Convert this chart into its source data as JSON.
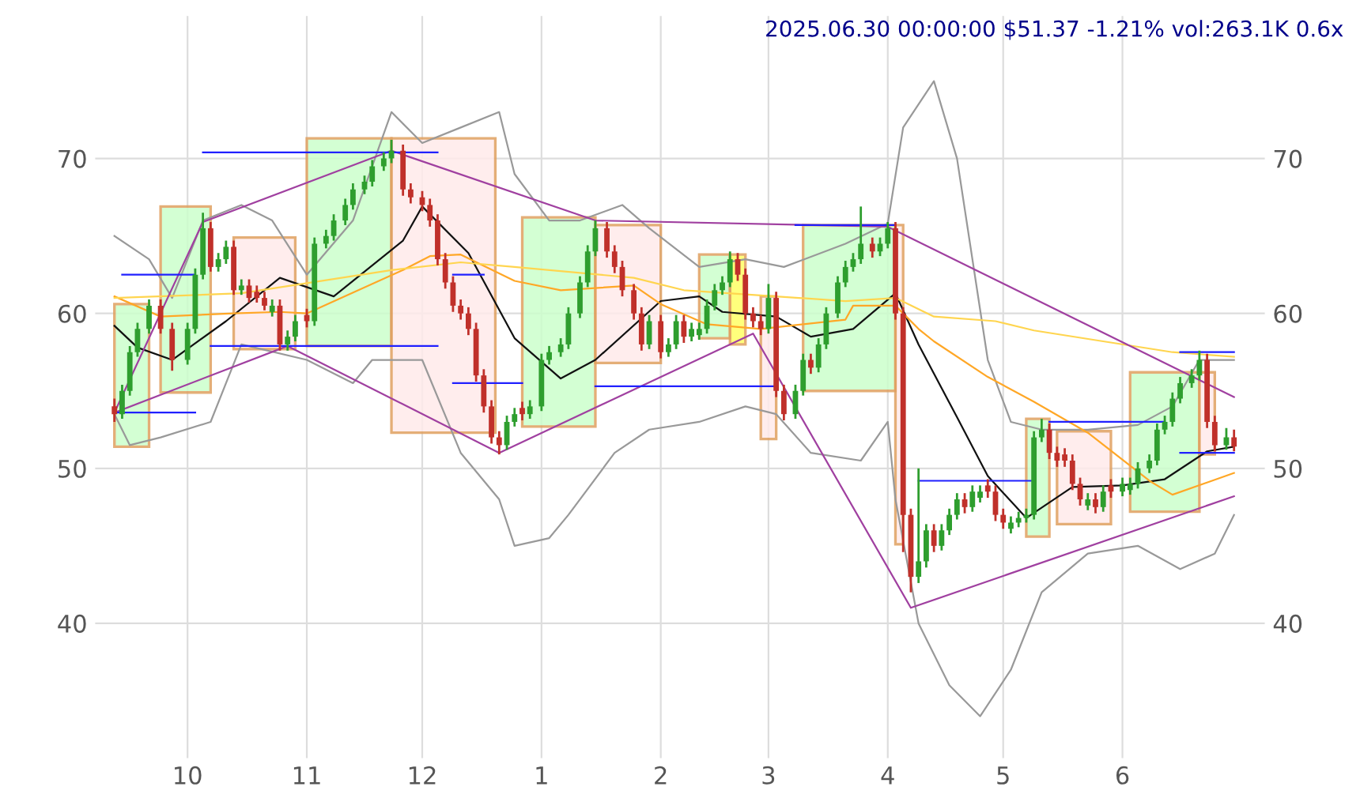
{
  "chart_data": {
    "type": "candlestick",
    "title": "2025.06.30 00:00:00 $51.37 -1.21% vol:263.1K 0.6x",
    "x": [
      "2024-09-12",
      "2024-09-14",
      "2024-09-16",
      "2024-09-18",
      "2024-09-21",
      "2024-09-24",
      "2024-09-27",
      "2024-10-01",
      "2024-10-03",
      "2024-10-05",
      "2024-10-07",
      "2024-10-09",
      "2024-10-11",
      "2024-10-13",
      "2024-10-15",
      "2024-10-17",
      "2024-10-19",
      "2024-10-21",
      "2024-10-23",
      "2024-10-25",
      "2024-10-27",
      "2024-10-29",
      "2024-11-01",
      "2024-11-03",
      "2024-11-06",
      "2024-11-08",
      "2024-11-11",
      "2024-11-13",
      "2024-11-16",
      "2024-11-18",
      "2024-11-21",
      "2024-11-23",
      "2024-11-26",
      "2024-11-28",
      "2024-12-01",
      "2024-12-03",
      "2024-12-05",
      "2024-12-07",
      "2024-12-09",
      "2024-12-11",
      "2024-12-13",
      "2024-12-15",
      "2024-12-17",
      "2024-12-19",
      "2024-12-21",
      "2024-12-23",
      "2024-12-25",
      "2024-12-27",
      "2024-12-29",
      "2025-01-01",
      "2025-01-03",
      "2025-01-06",
      "2025-01-08",
      "2025-01-11",
      "2025-01-13",
      "2025-01-15",
      "2025-01-18",
      "2025-01-20",
      "2025-01-22",
      "2025-01-25",
      "2025-01-27",
      "2025-01-29",
      "2025-02-01",
      "2025-02-03",
      "2025-02-05",
      "2025-02-07",
      "2025-02-09",
      "2025-02-11",
      "2025-02-13",
      "2025-02-15",
      "2025-02-17",
      "2025-02-19",
      "2025-02-21",
      "2025-02-23",
      "2025-02-25",
      "2025-02-27",
      "2025-03-01",
      "2025-03-03",
      "2025-03-05",
      "2025-03-08",
      "2025-03-10",
      "2025-03-12",
      "2025-03-14",
      "2025-03-16",
      "2025-03-19",
      "2025-03-21",
      "2025-03-23",
      "2025-03-25",
      "2025-03-28",
      "2025-03-30",
      "2025-04-01",
      "2025-04-03",
      "2025-04-05",
      "2025-04-07",
      "2025-04-09",
      "2025-04-11",
      "2025-04-13",
      "2025-04-15",
      "2025-04-17",
      "2025-04-19",
      "2025-04-21",
      "2025-04-23",
      "2025-04-25",
      "2025-04-27",
      "2025-04-29",
      "2025-05-01",
      "2025-05-03",
      "2025-05-05",
      "2025-05-07",
      "2025-05-09",
      "2025-05-11",
      "2025-05-13",
      "2025-05-15",
      "2025-05-17",
      "2025-05-19",
      "2025-05-21",
      "2025-05-23",
      "2025-05-25",
      "2025-05-27",
      "2025-05-29",
      "2025-06-01",
      "2025-06-03",
      "2025-06-05",
      "2025-06-08",
      "2025-06-10",
      "2025-06-12",
      "2025-06-14",
      "2025-06-16",
      "2025-06-19",
      "2025-06-21",
      "2025-06-23",
      "2025-06-25",
      "2025-06-28",
      "2025-06-30"
    ],
    "ohlc": [
      [
        54,
        54.5,
        53,
        53.5
      ],
      [
        53.5,
        55.4,
        53.2,
        55
      ],
      [
        55,
        57.9,
        54.7,
        57.5
      ],
      [
        57.5,
        59.4,
        57.2,
        59
      ],
      [
        59,
        60.9,
        58.7,
        60.5
      ],
      [
        60.5,
        60.9,
        58.7,
        59
      ],
      [
        59,
        59.4,
        56.3,
        57
      ],
      [
        57,
        59.4,
        56.7,
        59
      ],
      [
        59,
        62.9,
        58.7,
        62.5
      ],
      [
        62.5,
        66.5,
        62.2,
        65.5
      ],
      [
        65.5,
        65.9,
        62.7,
        63
      ],
      [
        63,
        63.9,
        62.7,
        63.5
      ],
      [
        63.5,
        64.7,
        63.2,
        64.3
      ],
      [
        64.3,
        64.7,
        61.2,
        61.5
      ],
      [
        61.5,
        62.2,
        61.2,
        61.8
      ],
      [
        61.8,
        62.2,
        60.7,
        61
      ],
      [
        61.4,
        61.8,
        60.7,
        61
      ],
      [
        61,
        61.4,
        60.2,
        60.5
      ],
      [
        60.1,
        60.9,
        59.8,
        60.5
      ],
      [
        60.5,
        60.9,
        57.6,
        58
      ],
      [
        58,
        58.9,
        57.6,
        58.5
      ],
      [
        58.5,
        59.9,
        58.2,
        59.5
      ],
      [
        59.9,
        60.3,
        59.1,
        59.5
      ],
      [
        59.5,
        64.9,
        59.2,
        64.5
      ],
      [
        64.5,
        65.4,
        64.2,
        65
      ],
      [
        65,
        66.4,
        64.7,
        66
      ],
      [
        66,
        67.4,
        65.7,
        67
      ],
      [
        67,
        68.4,
        66.7,
        68
      ],
      [
        68,
        68.9,
        67.7,
        68.5
      ],
      [
        68.5,
        69.9,
        68.2,
        69.5
      ],
      [
        69.5,
        70.4,
        69.2,
        70
      ],
      [
        70,
        71.2,
        69.7,
        70.5
      ],
      [
        70.5,
        70.9,
        67.6,
        68
      ],
      [
        68,
        68.4,
        67.1,
        67.5
      ],
      [
        67.5,
        67.9,
        66.6,
        67
      ],
      [
        67,
        67.4,
        65.6,
        66
      ],
      [
        66,
        66.4,
        63.1,
        63.5
      ],
      [
        63.5,
        63.9,
        61.6,
        62
      ],
      [
        62,
        62.4,
        60.1,
        60.5
      ],
      [
        60.5,
        60.9,
        59.6,
        60
      ],
      [
        60,
        60.4,
        58.6,
        59
      ],
      [
        59,
        59.4,
        55.6,
        56
      ],
      [
        56,
        56.4,
        53.6,
        54
      ],
      [
        54,
        54.4,
        51.6,
        52
      ],
      [
        52,
        52.4,
        50.9,
        51.5
      ],
      [
        51.5,
        53.4,
        51.2,
        53
      ],
      [
        53,
        53.9,
        52.7,
        53.5
      ],
      [
        53.9,
        54.3,
        53.1,
        53.5
      ],
      [
        53.5,
        54.4,
        53.2,
        54
      ],
      [
        54,
        57.4,
        53.7,
        57
      ],
      [
        57,
        57.9,
        56.7,
        57.5
      ],
      [
        57.5,
        58.4,
        57.2,
        58
      ],
      [
        58,
        60.4,
        57.7,
        60
      ],
      [
        60,
        62.4,
        59.7,
        62
      ],
      [
        62,
        64.4,
        61.7,
        64
      ],
      [
        64,
        66,
        63.7,
        65.5
      ],
      [
        65.5,
        65.9,
        63.6,
        64
      ],
      [
        64,
        64.4,
        62.6,
        63
      ],
      [
        63,
        63.4,
        61.1,
        61.5
      ],
      [
        61.5,
        61.9,
        59.6,
        60
      ],
      [
        60,
        60.4,
        57.6,
        58
      ],
      [
        58,
        59.9,
        57.7,
        59.5
      ],
      [
        59.5,
        59.9,
        57.1,
        57.5
      ],
      [
        57.5,
        58.4,
        57.2,
        58
      ],
      [
        58,
        59.9,
        57.7,
        59.5
      ],
      [
        59.5,
        59.9,
        58.1,
        58.5
      ],
      [
        58.5,
        59.4,
        58.2,
        59
      ],
      [
        58.6,
        59.4,
        58.3,
        59
      ],
      [
        59,
        60.9,
        58.7,
        60.5
      ],
      [
        60.5,
        61.9,
        60.2,
        61.5
      ],
      [
        61.5,
        62.4,
        61.2,
        62
      ],
      [
        62,
        64,
        61.7,
        63.5
      ],
      [
        63.5,
        63.9,
        62.1,
        62.5
      ],
      [
        62.5,
        62.9,
        59.6,
        60
      ],
      [
        60,
        60.4,
        59.1,
        59.5
      ],
      [
        59.5,
        59.9,
        58.6,
        59
      ],
      [
        59,
        61.9,
        58.7,
        61
      ],
      [
        61,
        61.4,
        54.6,
        55
      ],
      [
        55,
        55.4,
        53.1,
        53.5
      ],
      [
        53.5,
        55.4,
        53.2,
        55
      ],
      [
        55,
        57.4,
        54.7,
        57
      ],
      [
        57,
        57.4,
        56.1,
        56.5
      ],
      [
        56.5,
        58.4,
        56.2,
        58
      ],
      [
        58,
        60.4,
        57.7,
        60
      ],
      [
        60,
        62.4,
        59.7,
        62
      ],
      [
        62,
        63.4,
        61.7,
        63
      ],
      [
        63,
        63.9,
        62.7,
        63.5
      ],
      [
        63.5,
        66.9,
        63.2,
        64.5
      ],
      [
        64.5,
        64.9,
        63.6,
        64
      ],
      [
        64,
        64.9,
        63.7,
        64.5
      ],
      [
        64.5,
        65.9,
        64.2,
        65.5
      ],
      [
        65.5,
        65.9,
        59.6,
        60
      ],
      [
        60,
        60.4,
        44.6,
        47
      ],
      [
        47,
        47.4,
        42,
        43
      ],
      [
        43,
        50,
        42.6,
        44
      ],
      [
        44,
        46.4,
        43.6,
        46
      ],
      [
        46,
        46.4,
        44.6,
        45
      ],
      [
        45,
        46.4,
        44.7,
        46
      ],
      [
        46,
        47.4,
        45.7,
        47
      ],
      [
        47,
        48.4,
        46.7,
        48
      ],
      [
        48,
        48.4,
        47.1,
        47.5
      ],
      [
        47.5,
        48.9,
        47.2,
        48.5
      ],
      [
        48.1,
        48.9,
        47.8,
        48.5
      ],
      [
        48.9,
        49.3,
        48.1,
        48.5
      ],
      [
        48.5,
        48.9,
        46.6,
        47
      ],
      [
        47,
        47.4,
        46.1,
        46.5
      ],
      [
        46.1,
        46.9,
        45.8,
        46.5
      ],
      [
        46.5,
        47.2,
        46.2,
        46.8
      ],
      [
        46.8,
        47.4,
        46.5,
        47
      ],
      [
        47,
        52.4,
        46.7,
        52
      ],
      [
        52,
        53.2,
        51.7,
        52.5
      ],
      [
        52.5,
        52.9,
        50.6,
        51
      ],
      [
        51,
        51.4,
        50.1,
        50.5
      ],
      [
        50.9,
        51.3,
        50.1,
        50.5
      ],
      [
        50.5,
        50.9,
        48.6,
        49
      ],
      [
        49,
        49.4,
        47.6,
        48
      ],
      [
        47.6,
        48.4,
        47.3,
        48
      ],
      [
        48,
        48.4,
        47.1,
        47.5
      ],
      [
        47.5,
        48.9,
        47.2,
        48.5
      ],
      [
        48.9,
        49.3,
        48.1,
        48.5
      ],
      [
        48.5,
        49.4,
        48.2,
        49
      ],
      [
        48.6,
        49.4,
        48.3,
        49
      ],
      [
        49,
        50.4,
        48.7,
        50
      ],
      [
        50,
        50.9,
        49.7,
        50.5
      ],
      [
        50.5,
        52.9,
        50.2,
        52.5
      ],
      [
        52.5,
        53.4,
        52.2,
        53
      ],
      [
        53,
        54.9,
        52.7,
        54.5
      ],
      [
        54.5,
        55.9,
        54.2,
        55.5
      ],
      [
        55.5,
        56.4,
        55.2,
        56
      ],
      [
        56,
        57.6,
        55.7,
        57
      ],
      [
        57,
        57.4,
        52.6,
        53
      ],
      [
        53,
        53.4,
        51.1,
        51.5
      ],
      [
        51.5,
        52.6,
        51.2,
        52
      ],
      [
        52,
        52.5,
        51.1,
        51.4
      ]
    ],
    "colors": [
      "#c0302a",
      "#2e9e2e",
      "#2e9e2e",
      "#2e9e2e",
      "#2e9e2e",
      "#c0302a",
      "#c0302a",
      "#2e9e2e",
      "#2e9e2e",
      "#2e9e2e",
      "#c0302a",
      "#2e9e2e",
      "#2e9e2e",
      "#c0302a",
      "#2e9e2e",
      "#c0302a",
      "#c0302a",
      "#c0302a",
      "#2e9e2e",
      "#c0302a",
      "#2e9e2e",
      "#2e9e2e",
      "#c0302a",
      "#2e9e2e",
      "#2e9e2e",
      "#2e9e2e",
      "#2e9e2e",
      "#2e9e2e",
      "#2e9e2e",
      "#2e9e2e",
      "#2e9e2e",
      "#2e9e2e",
      "#c0302a",
      "#c0302a",
      "#c0302a",
      "#c0302a",
      "#c0302a",
      "#c0302a",
      "#c0302a",
      "#c0302a",
      "#c0302a",
      "#c0302a",
      "#c0302a",
      "#c0302a",
      "#c0302a",
      "#2e9e2e",
      "#2e9e2e",
      "#c0302a",
      "#2e9e2e",
      "#2e9e2e",
      "#2e9e2e",
      "#2e9e2e",
      "#2e9e2e",
      "#2e9e2e",
      "#2e9e2e",
      "#2e9e2e",
      "#c0302a",
      "#c0302a",
      "#c0302a",
      "#c0302a",
      "#c0302a",
      "#2e9e2e",
      "#c0302a",
      "#2e9e2e",
      "#2e9e2e",
      "#c0302a",
      "#2e9e2e",
      "#2e9e2e",
      "#2e9e2e",
      "#2e9e2e",
      "#2e9e2e",
      "#2e9e2e",
      "#c0302a",
      "#c0302a",
      "#c0302a",
      "#c0302a",
      "#2e9e2e",
      "#c0302a",
      "#c0302a",
      "#2e9e2e",
      "#2e9e2e",
      "#c0302a",
      "#2e9e2e",
      "#2e9e2e",
      "#2e9e2e",
      "#2e9e2e",
      "#2e9e2e",
      "#2e9e2e",
      "#c0302a",
      "#2e9e2e",
      "#2e9e2e",
      "#c0302a",
      "#c0302a",
      "#c0302a",
      "#2e9e2e",
      "#2e9e2e",
      "#c0302a",
      "#2e9e2e",
      "#2e9e2e",
      "#2e9e2e",
      "#c0302a",
      "#2e9e2e",
      "#2e9e2e",
      "#c0302a",
      "#c0302a",
      "#c0302a",
      "#2e9e2e",
      "#2e9e2e",
      "#2e9e2e",
      "#2e9e2e",
      "#2e9e2e",
      "#c0302a",
      "#c0302a",
      "#c0302a",
      "#c0302a",
      "#c0302a",
      "#2e9e2e",
      "#c0302a",
      "#2e9e2e",
      "#c0302a",
      "#2e9e2e",
      "#2e9e2e",
      "#2e9e2e",
      "#2e9e2e",
      "#2e9e2e",
      "#2e9e2e",
      "#2e9e2e",
      "#2e9e2e",
      "#2e9e2e",
      "#2e9e2e",
      "#c0302a",
      "#c0302a",
      "#2e9e2e",
      "#c0302a"
    ],
    "series": [
      {
        "type": "area",
        "color": "#ccffcc",
        "x": [
          "2024-09-12",
          "2024-09-12",
          "2024-09-21",
          "2024-09-21"
        ],
        "values": [
          51.4,
          60.6,
          60.6,
          51.4
        ]
      },
      {
        "type": "area",
        "color": "#ccffcc",
        "x": [
          "2024-09-24",
          "2024-09-24",
          "2024-10-07",
          "2024-10-07"
        ],
        "values": [
          54.9,
          66.9,
          66.9,
          54.9
        ]
      },
      {
        "type": "area",
        "color": "#ffeaea",
        "x": [
          "2024-10-13",
          "2024-10-13",
          "2024-10-29",
          "2024-10-29"
        ],
        "values": [
          57.7,
          64.9,
          64.9,
          57.7
        ]
      },
      {
        "type": "area",
        "color": "#ccffcc",
        "x": [
          "2024-11-01",
          "2024-11-01",
          "2024-11-23",
          "2024-11-23"
        ],
        "values": [
          57.9,
          71.3,
          71.3,
          57.9
        ]
      },
      {
        "type": "area",
        "color": "#ffeaea",
        "x": [
          "2024-11-23",
          "2024-11-23",
          "2024-12-20",
          "2024-12-20"
        ],
        "values": [
          52.3,
          71.3,
          71.3,
          52.3
        ]
      },
      {
        "type": "area",
        "color": "#ccffcc",
        "x": [
          "2024-12-27",
          "2024-12-27",
          "2025-01-15",
          "2025-01-15"
        ],
        "values": [
          52.7,
          66.2,
          66.2,
          52.7
        ]
      },
      {
        "type": "area",
        "color": "#ffeaea",
        "x": [
          "2025-01-15",
          "2025-01-15",
          "2025-02-01",
          "2025-02-01"
        ],
        "values": [
          56.8,
          65.7,
          65.7,
          56.8
        ]
      },
      {
        "type": "area",
        "color": "#ccffcc",
        "x": [
          "2025-02-11",
          "2025-02-11",
          "2025-02-19",
          "2025-02-19"
        ],
        "values": [
          58.4,
          63.8,
          63.8,
          58.4
        ]
      },
      {
        "type": "area",
        "color": "#ffff66",
        "x": [
          "2025-02-19",
          "2025-02-19",
          "2025-02-23",
          "2025-02-23"
        ],
        "values": [
          58,
          63.8,
          63.8,
          58
        ]
      },
      {
        "type": "area",
        "color": "#ffeaea",
        "x": [
          "2025-02-27",
          "2025-02-27",
          "2025-03-03",
          "2025-03-03"
        ],
        "values": [
          51.9,
          61.1,
          61.1,
          51.9
        ]
      },
      {
        "type": "area",
        "color": "#ccffcc",
        "x": [
          "2025-03-10",
          "2025-03-10",
          "2025-04-03",
          "2025-04-03"
        ],
        "values": [
          55,
          65.7,
          65.7,
          55
        ]
      },
      {
        "type": "area",
        "color": "#ffeaea",
        "x": [
          "2025-04-03",
          "2025-04-03",
          "2025-04-05",
          "2025-04-05"
        ],
        "values": [
          45.1,
          65.7,
          65.7,
          45.1
        ]
      },
      {
        "type": "area",
        "color": "#ccffcc",
        "x": [
          "2025-05-07",
          "2025-05-07",
          "2025-05-13",
          "2025-05-13"
        ],
        "values": [
          45.6,
          53.2,
          53.2,
          45.6
        ]
      },
      {
        "type": "area",
        "color": "#ffeaea",
        "x": [
          "2025-05-15",
          "2025-05-15",
          "2025-05-29",
          "2025-05-29"
        ],
        "values": [
          46.4,
          52.4,
          52.4,
          46.4
        ]
      },
      {
        "type": "area",
        "color": "#ccffcc",
        "x": [
          "2025-06-03",
          "2025-06-03",
          "2025-06-21",
          "2025-06-21"
        ],
        "values": [
          47.2,
          56.2,
          56.2,
          47.2
        ]
      },
      {
        "type": "area",
        "color": "#ffeaea",
        "x": [
          "2025-06-21",
          "2025-06-21",
          "2025-06-25",
          "2025-06-25"
        ],
        "values": [
          50.9,
          56.2,
          56.2,
          50.9
        ]
      },
      {
        "type": "line",
        "color": "#999999",
        "x": [
          "2024-09-12",
          "2024-09-21",
          "2024-09-27",
          "2024-10-05",
          "2024-10-15",
          "2024-10-23",
          "2024-11-01",
          "2024-11-13",
          "2024-11-23",
          "2024-12-01",
          "2024-12-11",
          "2024-12-21",
          "2024-12-25",
          "2025-01-03",
          "2025-01-11",
          "2025-01-22",
          "2025-01-29",
          "2025-02-11",
          "2025-02-23",
          "2025-03-05",
          "2025-03-21",
          "2025-04-01",
          "2025-04-05",
          "2025-04-13",
          "2025-04-19",
          "2025-04-27",
          "2025-05-03",
          "2025-05-11",
          "2025-05-23",
          "2025-06-05",
          "2025-06-14",
          "2025-06-21",
          "2025-06-30"
        ],
        "values": [
          65,
          63.5,
          61,
          66,
          67,
          66,
          62.5,
          66,
          73,
          71,
          72,
          73,
          69,
          66,
          66,
          67,
          65.5,
          63,
          63.5,
          63,
          64.5,
          65.8,
          72,
          75,
          70,
          57,
          53,
          52.5,
          52.5,
          52.8,
          54,
          57,
          57
        ]
      },
      {
        "type": "line",
        "color": "#999999",
        "x": [
          "2024-09-12",
          "2024-09-16",
          "2024-09-24",
          "2024-10-07",
          "2024-10-15",
          "2024-11-01",
          "2024-11-13",
          "2024-11-18",
          "2024-12-01",
          "2024-12-11",
          "2024-12-21",
          "2024-12-25",
          "2025-01-03",
          "2025-01-08",
          "2025-01-20",
          "2025-01-29",
          "2025-02-11",
          "2025-02-23",
          "2025-03-03",
          "2025-03-12",
          "2025-03-25",
          "2025-04-01",
          "2025-04-03",
          "2025-04-09",
          "2025-04-17",
          "2025-04-25",
          "2025-05-03",
          "2025-05-11",
          "2025-05-23",
          "2025-06-05",
          "2025-06-16",
          "2025-06-25",
          "2025-06-30"
        ],
        "values": [
          53.5,
          51.5,
          52,
          53,
          58,
          57,
          55.5,
          57,
          57,
          51,
          48,
          45,
          45.5,
          47,
          51,
          52.5,
          53,
          54,
          53.5,
          51,
          50.5,
          53,
          48,
          40,
          36,
          34,
          37,
          42,
          44.5,
          45,
          43.5,
          44.5,
          47
        ]
      },
      {
        "type": "line",
        "color": "#111111",
        "x": [
          "2024-09-12",
          "2024-09-18",
          "2024-09-27",
          "2024-10-11",
          "2024-10-25",
          "2024-11-08",
          "2024-11-26",
          "2024-12-01",
          "2024-12-13",
          "2024-12-25",
          "2025-01-06",
          "2025-01-15",
          "2025-02-01",
          "2025-02-11",
          "2025-02-17",
          "2025-03-03",
          "2025-03-12",
          "2025-03-23",
          "2025-04-03",
          "2025-04-09",
          "2025-04-19",
          "2025-04-27",
          "2025-05-07",
          "2025-05-19",
          "2025-06-01",
          "2025-06-12",
          "2025-06-23",
          "2025-06-30"
        ],
        "values": [
          59.2,
          57.8,
          57,
          59.5,
          62.3,
          61.1,
          64.7,
          66.9,
          63.9,
          58.4,
          55.8,
          57,
          60.8,
          61.1,
          60.1,
          59.8,
          58.5,
          59,
          61.3,
          58,
          53.3,
          49.5,
          46.8,
          48.8,
          48.9,
          49.3,
          51.1,
          51.4
        ]
      },
      {
        "type": "line",
        "color": "#ffa726",
        "x": [
          "2024-09-12",
          "2024-09-24",
          "2024-10-13",
          "2024-10-25",
          "2024-11-01",
          "2024-11-26",
          "2024-12-03",
          "2024-12-11",
          "2024-12-25",
          "2025-01-06",
          "2025-01-25",
          "2025-02-01",
          "2025-02-13",
          "2025-02-27",
          "2025-03-21",
          "2025-03-23",
          "2025-04-03",
          "2025-04-09",
          "2025-04-13",
          "2025-04-27",
          "2025-05-09",
          "2025-05-23",
          "2025-06-08",
          "2025-06-14",
          "2025-06-30"
        ],
        "values": [
          61.1,
          59.8,
          60,
          60.1,
          60,
          62.8,
          63.7,
          63.8,
          62.1,
          61.5,
          61.8,
          60.6,
          59.3,
          59,
          59.6,
          60.5,
          60.5,
          59,
          58.2,
          55.9,
          54.3,
          52.3,
          49.2,
          48.3,
          49.7
        ]
      },
      {
        "type": "line",
        "color": "#ffd54f",
        "x": [
          "2024-09-12",
          "2024-10-15",
          "2024-11-23",
          "2024-12-11",
          "2024-12-25",
          "2025-01-25",
          "2025-02-07",
          "2025-03-21",
          "2025-04-03",
          "2025-04-13",
          "2025-04-29",
          "2025-05-09",
          "2025-06-14",
          "2025-06-30"
        ],
        "values": [
          61,
          61.3,
          62.8,
          63.3,
          63,
          62.3,
          61.5,
          60.8,
          61,
          59.8,
          59.5,
          58.9,
          57.5,
          57.2
        ]
      },
      {
        "type": "line",
        "color": "#a040a0",
        "x": [
          "2024-09-12",
          "2024-10-05",
          "2024-11-23",
          "2025-01-15",
          "2025-04-01",
          "2025-06-30"
        ],
        "values": [
          53.6,
          65.9,
          70.5,
          66,
          65.6,
          54.6
        ]
      },
      {
        "type": "line",
        "color": "#a040a0",
        "x": [
          "2024-09-12",
          "2024-10-27",
          "2024-12-21",
          "2025-02-25",
          "2025-04-07",
          "2025-06-30"
        ],
        "values": [
          53.6,
          57.9,
          51,
          58.7,
          41,
          48.2
        ]
      },
      {
        "type": "line",
        "color": "#2020ff",
        "x": [
          "2024-09-12",
          "2024-10-03"
        ],
        "values": [
          53.6,
          53.6
        ]
      },
      {
        "type": "line",
        "color": "#2020ff",
        "x": [
          "2024-09-14",
          "2024-10-03"
        ],
        "values": [
          62.5,
          62.5
        ]
      },
      {
        "type": "line",
        "color": "#2020ff",
        "x": [
          "2024-10-05",
          "2024-12-05"
        ],
        "values": [
          70.4,
          70.4
        ]
      },
      {
        "type": "line",
        "color": "#2020ff",
        "x": [
          "2024-10-07",
          "2024-12-05"
        ],
        "values": [
          57.9,
          57.9
        ]
      },
      {
        "type": "line",
        "color": "#2020ff",
        "x": [
          "2024-12-09",
          "2024-12-17"
        ],
        "values": [
          62.5,
          62.5
        ]
      },
      {
        "type": "line",
        "color": "#2020ff",
        "x": [
          "2024-12-09",
          "2024-12-27"
        ],
        "values": [
          55.5,
          55.5
        ]
      },
      {
        "type": "line",
        "color": "#2020ff",
        "x": [
          "2025-01-15",
          "2025-03-03"
        ],
        "values": [
          55.3,
          55.3
        ]
      },
      {
        "type": "line",
        "color": "#2020ff",
        "x": [
          "2025-03-08",
          "2025-04-03"
        ],
        "values": [
          65.7,
          65.7
        ]
      },
      {
        "type": "line",
        "color": "#2020ff",
        "x": [
          "2025-04-09",
          "2025-05-09"
        ],
        "values": [
          49.2,
          49.2
        ]
      },
      {
        "type": "line",
        "color": "#2020ff",
        "x": [
          "2025-05-13",
          "2025-06-12"
        ],
        "values": [
          53,
          53
        ]
      },
      {
        "type": "line",
        "color": "#2020ff",
        "x": [
          "2025-06-16",
          "2025-06-30"
        ],
        "values": [
          57.5,
          57.5
        ]
      },
      {
        "type": "line",
        "color": "#2020ff",
        "x": [
          "2025-06-16",
          "2025-06-30"
        ],
        "values": [
          51,
          51
        ]
      }
    ],
    "xlim": [
      "2024-09-07",
      "2025-07-08"
    ],
    "xticks": [
      {
        "value": "2024-10-01",
        "label": "10"
      },
      {
        "value": "2024-11-01",
        "label": "11"
      },
      {
        "value": "2024-12-01",
        "label": "12"
      },
      {
        "value": "2025-01-01",
        "label": "1"
      },
      {
        "value": "2025-02-01",
        "label": "2"
      },
      {
        "value": "2025-03-01",
        "label": "3"
      },
      {
        "value": "2025-04-01",
        "label": "4"
      },
      {
        "value": "2025-05-01",
        "label": "5"
      },
      {
        "value": "2025-06-01",
        "label": "6"
      }
    ],
    "ylim": [
      31.3,
      79.2
    ],
    "yticks": [
      40,
      50,
      60,
      70
    ],
    "y2lim": [
      31.3,
      79.2
    ],
    "y2ticks": [
      40,
      50,
      60,
      70
    ],
    "grid": true
  }
}
